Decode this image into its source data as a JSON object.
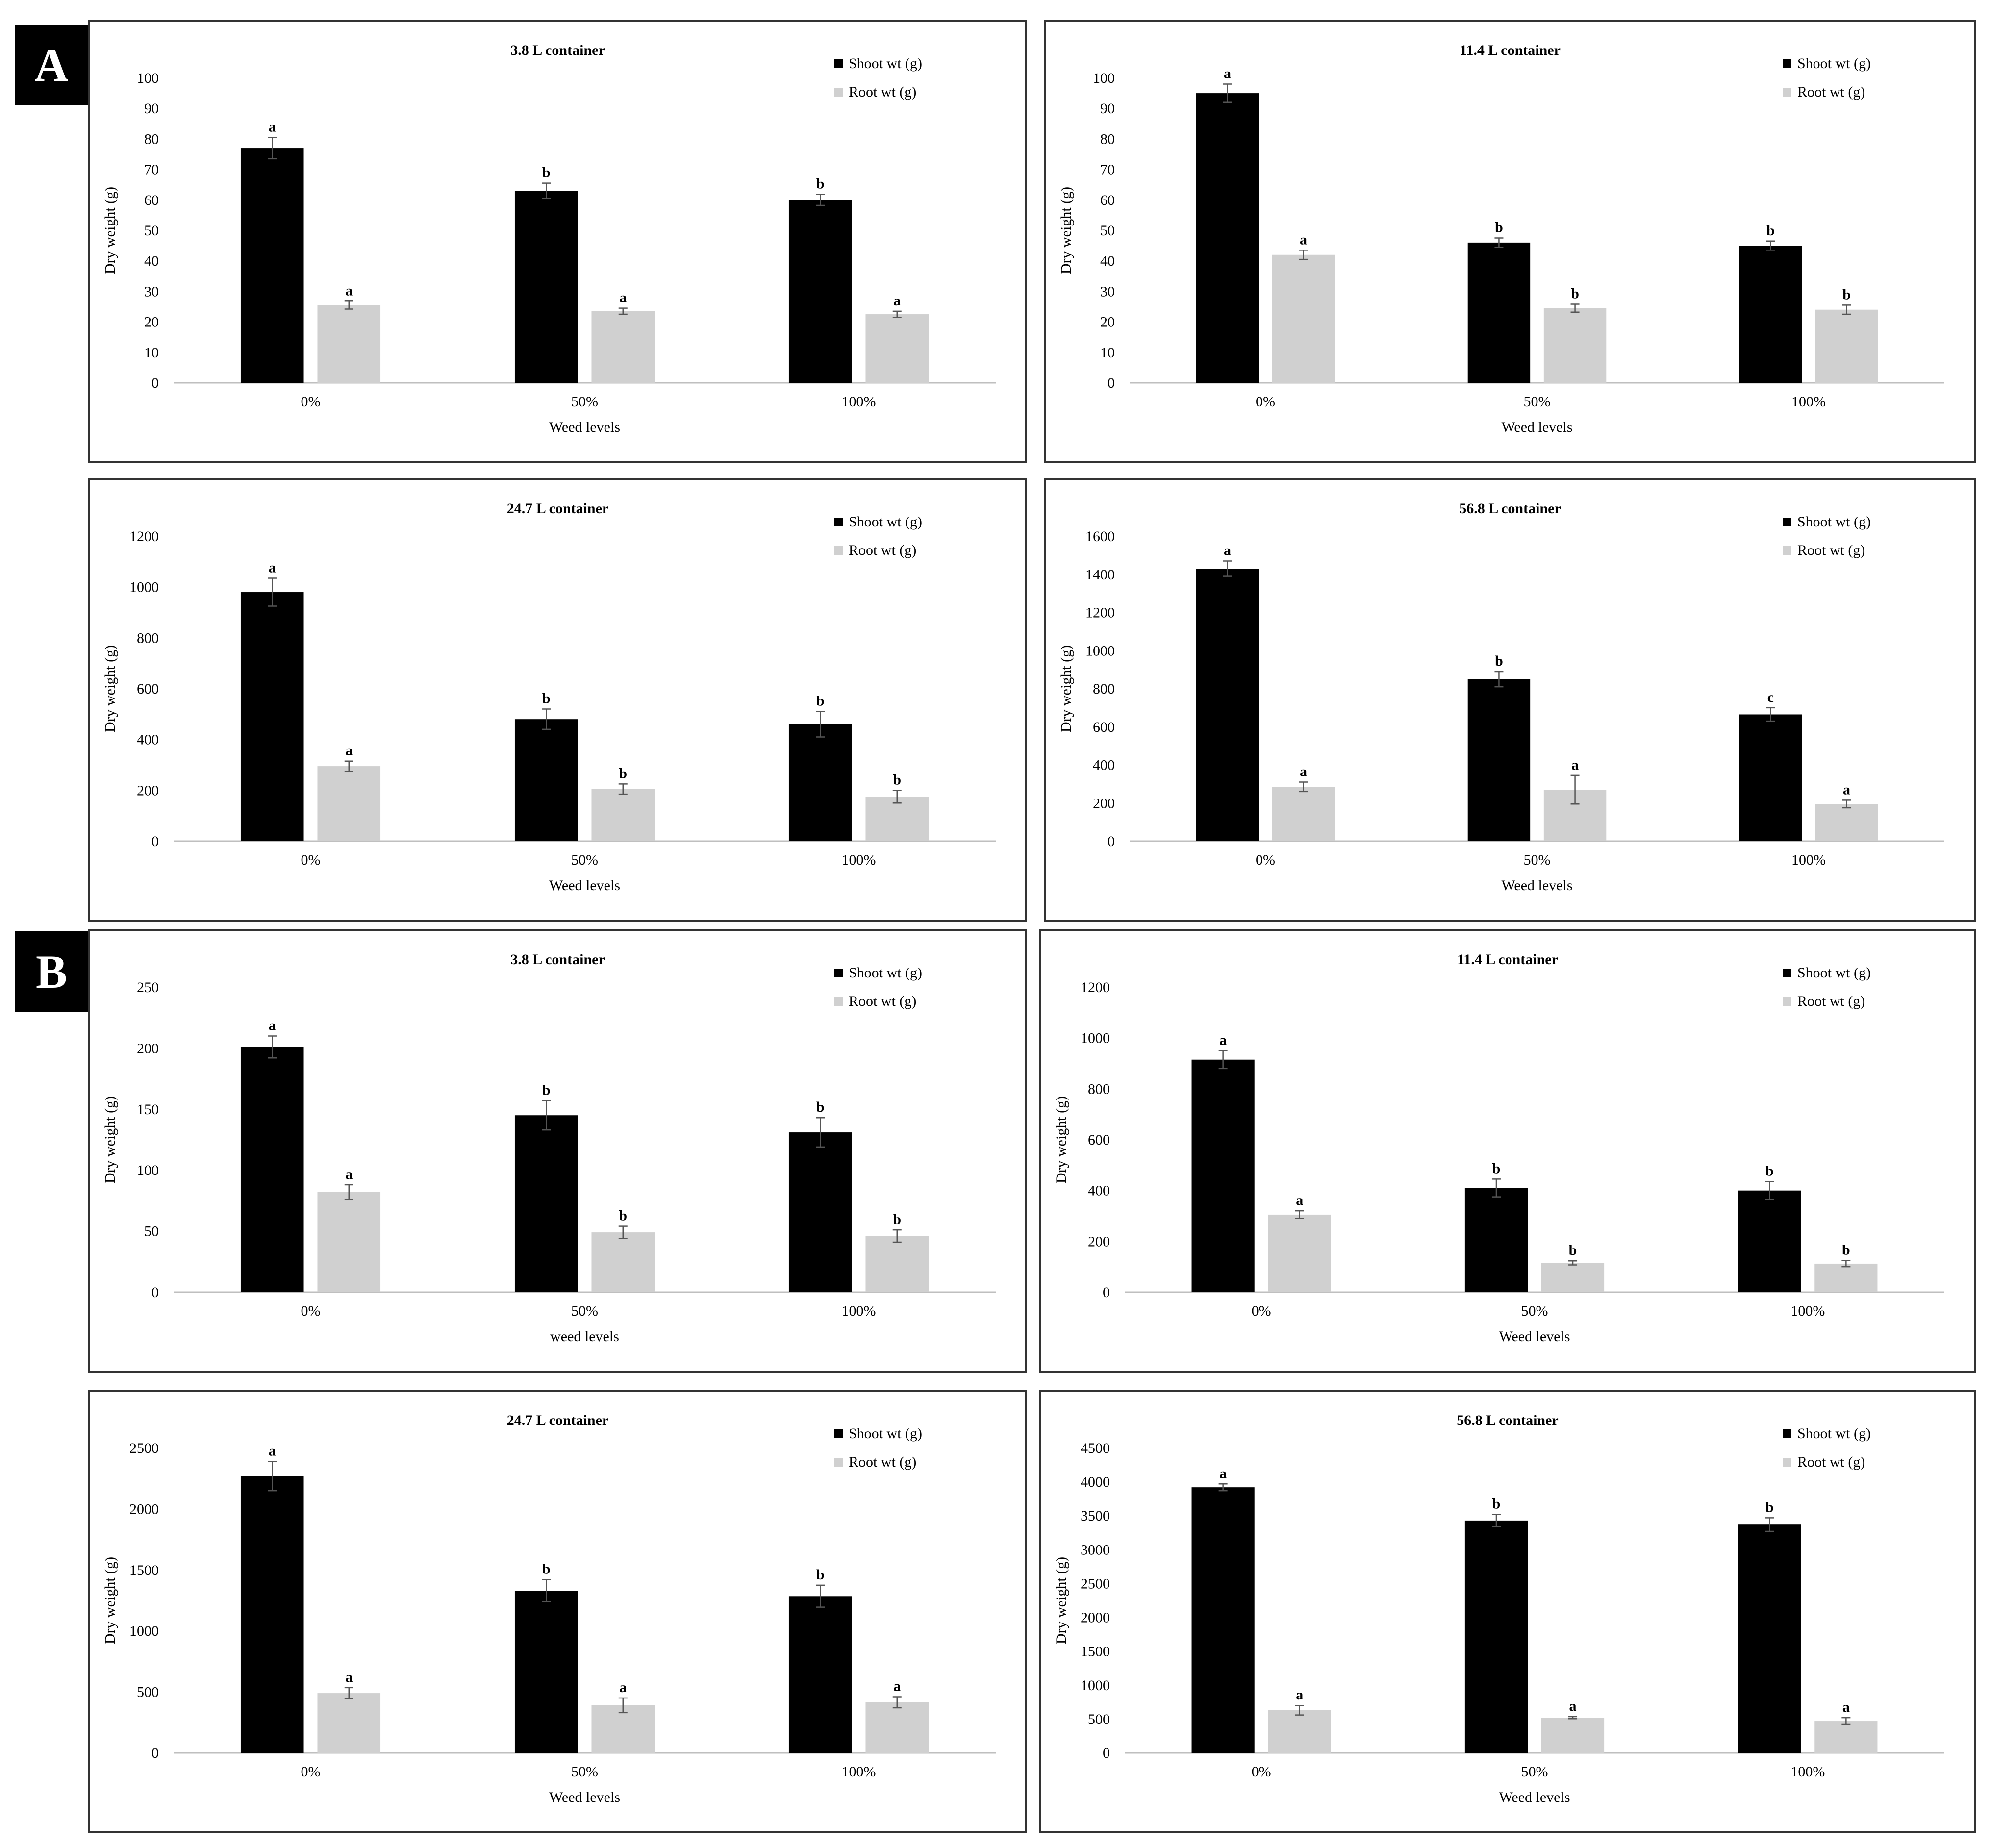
{
  "panels": [
    {
      "label": "A"
    },
    {
      "label": "B"
    }
  ],
  "colors": {
    "shoot": "#000000",
    "root": "#d0d0d0",
    "axis": "#bfbfbf"
  },
  "chart_data": [
    {
      "id": "A1",
      "panel": "A",
      "type": "bar",
      "title": "3.8 L container",
      "xlabel": "Weed levels",
      "ylabel": "Dry weight (g)",
      "categories": [
        "0%",
        "50%",
        "100%"
      ],
      "ylim": [
        0,
        100
      ],
      "yticks": [
        "0",
        "10",
        "20",
        "30",
        "40",
        "50",
        "60",
        "70",
        "80",
        "90",
        "100"
      ],
      "series": [
        {
          "name": "Shoot wt (g)",
          "values": [
            77,
            63,
            60
          ],
          "errors": [
            3.5,
            2.5,
            1.8
          ],
          "letters": [
            "a",
            "b",
            "b"
          ]
        },
        {
          "name": "Root wt (g)",
          "values": [
            25.5,
            23.5,
            22.5
          ],
          "errors": [
            1.3,
            1,
            1
          ],
          "letters": [
            "a",
            "a",
            "a"
          ]
        }
      ]
    },
    {
      "id": "A2",
      "panel": "A",
      "type": "bar",
      "title": "11.4 L container",
      "xlabel": "Weed levels",
      "ylabel": "Dry weight (g)",
      "categories": [
        "0%",
        "50%",
        "100%"
      ],
      "ylim": [
        0,
        100
      ],
      "yticks": [
        "0",
        "10",
        "20",
        "30",
        "40",
        "50",
        "60",
        "70",
        "80",
        "90",
        "100"
      ],
      "series": [
        {
          "name": "Shoot wt (g)",
          "values": [
            95,
            46,
            45
          ],
          "errors": [
            3,
            1.5,
            1.5
          ],
          "letters": [
            "a",
            "b",
            "b"
          ]
        },
        {
          "name": "Root wt (g)",
          "values": [
            42,
            24.5,
            24
          ],
          "errors": [
            1.5,
            1.3,
            1.5
          ],
          "letters": [
            "a",
            "b",
            "b"
          ]
        }
      ]
    },
    {
      "id": "A3",
      "panel": "A",
      "type": "bar",
      "title": "24.7 L container",
      "xlabel": "Weed levels",
      "ylabel": "Dry weight (g)",
      "categories": [
        "0%",
        "50%",
        "100%"
      ],
      "ylim": [
        0,
        1200
      ],
      "yticks": [
        "0",
        "200",
        "400",
        "600",
        "800",
        "1000",
        "1200"
      ],
      "series": [
        {
          "name": "Shoot wt (g)",
          "values": [
            980,
            480,
            460
          ],
          "errors": [
            55,
            40,
            50
          ],
          "letters": [
            "a",
            "b",
            "b"
          ]
        },
        {
          "name": "Root wt (g)",
          "values": [
            295,
            205,
            175
          ],
          "errors": [
            20,
            20,
            25
          ],
          "letters": [
            "a",
            "b",
            "b"
          ]
        }
      ]
    },
    {
      "id": "A4",
      "panel": "A",
      "type": "bar",
      "title": "56.8 L container",
      "xlabel": "Weed levels",
      "ylabel": "Dry weight (g)",
      "categories": [
        "0%",
        "50%",
        "100%"
      ],
      "ylim": [
        0,
        1600
      ],
      "yticks": [
        "0",
        "200",
        "400",
        "600",
        "800",
        "1000",
        "1200",
        "1400",
        "1600"
      ],
      "series": [
        {
          "name": "Shoot wt (g)",
          "values": [
            1430,
            850,
            665
          ],
          "errors": [
            40,
            40,
            35
          ],
          "letters": [
            "a",
            "b",
            "c"
          ]
        },
        {
          "name": "Root wt (g)",
          "values": [
            285,
            270,
            195
          ],
          "errors": [
            25,
            75,
            20
          ],
          "letters": [
            "a",
            "a",
            "a"
          ]
        }
      ]
    },
    {
      "id": "B1",
      "panel": "B",
      "type": "bar",
      "title": "3.8 L container",
      "xlabel": "weed levels",
      "ylabel": "Dry weight (g)",
      "categories": [
        "0%",
        "50%",
        "100%"
      ],
      "ylim": [
        0,
        250
      ],
      "yticks": [
        "0",
        "50",
        "100",
        "150",
        "200",
        "250"
      ],
      "series": [
        {
          "name": "Shoot wt (g)",
          "values": [
            201,
            145,
            131
          ],
          "errors": [
            9,
            12,
            12
          ],
          "letters": [
            "a",
            "b",
            "b"
          ]
        },
        {
          "name": "Root wt (g)",
          "values": [
            82,
            49,
            46
          ],
          "errors": [
            6,
            5,
            5
          ],
          "letters": [
            "a",
            "b",
            "b"
          ]
        }
      ]
    },
    {
      "id": "B2",
      "panel": "B",
      "type": "bar",
      "title": "11.4 L container",
      "xlabel": "Weed levels",
      "ylabel": "Dry weight (g)",
      "categories": [
        "0%",
        "50%",
        "100%"
      ],
      "ylim": [
        0,
        1200
      ],
      "yticks": [
        "0",
        "200",
        "400",
        "600",
        "800",
        "1000",
        "1200"
      ],
      "series": [
        {
          "name": "Shoot wt (g)",
          "values": [
            915,
            410,
            400
          ],
          "errors": [
            35,
            35,
            35
          ],
          "letters": [
            "a",
            "b",
            "b"
          ]
        },
        {
          "name": "Root wt (g)",
          "values": [
            305,
            115,
            112
          ],
          "errors": [
            15,
            8,
            12
          ],
          "letters": [
            "a",
            "b",
            "b"
          ]
        }
      ]
    },
    {
      "id": "B3",
      "panel": "B",
      "type": "bar",
      "title": "24.7 L container",
      "xlabel": "Weed levels",
      "ylabel": "Dry weight (g)",
      "categories": [
        "0%",
        "50%",
        "100%"
      ],
      "ylim": [
        0,
        2500
      ],
      "yticks": [
        "0",
        "500",
        "1000",
        "1500",
        "2000",
        "2500"
      ],
      "series": [
        {
          "name": "Shoot wt (g)",
          "values": [
            2270,
            1330,
            1285
          ],
          "errors": [
            120,
            90,
            90
          ],
          "letters": [
            "a",
            "b",
            "b"
          ]
        },
        {
          "name": "Root wt (g)",
          "values": [
            490,
            390,
            415
          ],
          "errors": [
            45,
            60,
            45
          ],
          "letters": [
            "a",
            "a",
            "a"
          ]
        }
      ]
    },
    {
      "id": "B4",
      "panel": "B",
      "type": "bar",
      "title": "56.8 L container",
      "xlabel": "Weed levels",
      "ylabel": "Dry weight (g)",
      "categories": [
        "0%",
        "50%",
        "100%"
      ],
      "ylim": [
        0,
        4500
      ],
      "yticks": [
        "0",
        "500",
        "1000",
        "1500",
        "2000",
        "2500",
        "3000",
        "3500",
        "4000",
        "4500"
      ],
      "series": [
        {
          "name": "Shoot wt (g)",
          "values": [
            3920,
            3430,
            3370
          ],
          "errors": [
            50,
            90,
            100
          ],
          "letters": [
            "a",
            "b",
            "b"
          ]
        },
        {
          "name": "Root wt (g)",
          "values": [
            630,
            520,
            470
          ],
          "errors": [
            70,
            15,
            50
          ],
          "letters": [
            "a",
            "a",
            "a"
          ]
        }
      ]
    }
  ]
}
